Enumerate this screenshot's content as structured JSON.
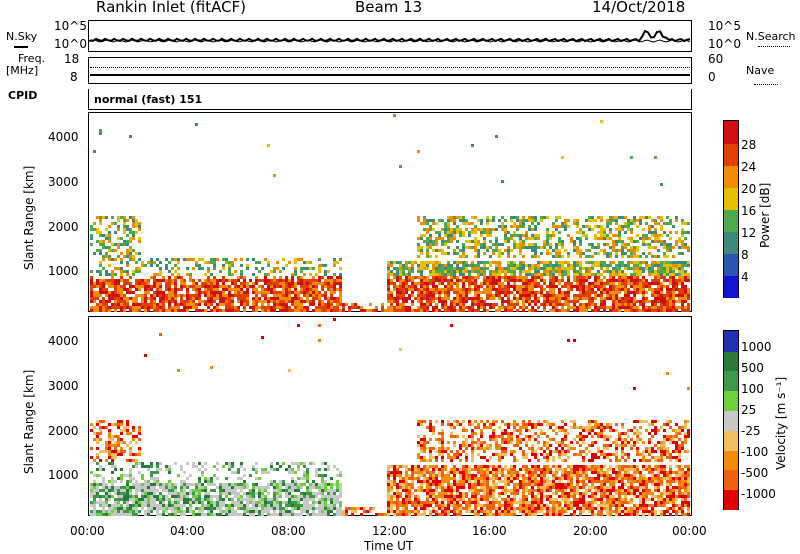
{
  "header": {
    "title": "Rankin Inlet (fitACF)",
    "beam": "Beam 13",
    "date": "14/Oct/2018"
  },
  "top_panel": {
    "left_label": "N.Sky",
    "right_label": "N.Search",
    "left_ticks": [
      "10^5",
      "10^0"
    ],
    "right_ticks": [
      "10^5",
      "10^0"
    ]
  },
  "freq_panel": {
    "left_label": "Freq.",
    "left_unit": "[MHz]",
    "left_ticks": [
      "18",
      "8"
    ],
    "right_label": "Nave",
    "right_ticks": [
      "60",
      "0"
    ],
    "cpid_label": "CPID",
    "mode_text": "normal (fast) 151"
  },
  "chart_data": [
    {
      "type": "heatmap",
      "name": "power",
      "ylabel": "Slant Range [km]",
      "xlabel": "",
      "yticks": [
        "1000",
        "2000",
        "3000",
        "4000"
      ],
      "ylim": [
        180,
        4560
      ],
      "xlim": [
        0,
        24
      ],
      "colorbar_label": "Power [dB]",
      "colorbar_ticks": [
        "4",
        "8",
        "12",
        "16",
        "20",
        "24",
        "28"
      ],
      "colorbar_colors": [
        "#1414d0",
        "#2a55b0",
        "#3b8a7a",
        "#4caa4c",
        "#e6c000",
        "#f08c00",
        "#e04000",
        "#d01010"
      ]
    },
    {
      "type": "heatmap",
      "name": "velocity",
      "ylabel": "Slant Range [km]",
      "xlabel": "Time UT",
      "yticks": [
        "1000",
        "2000",
        "3000",
        "4000"
      ],
      "ylim": [
        180,
        4560
      ],
      "xlim": [
        0,
        24
      ],
      "xticks": [
        "00:00",
        "04:00",
        "08:00",
        "12:00",
        "16:00",
        "20:00",
        "00:00"
      ],
      "colorbar_label": "Velocity [m s⁻¹]",
      "colorbar_ticks": [
        "1000",
        "500",
        "100",
        "25",
        "-25",
        "-100",
        "-500",
        "-1000"
      ],
      "colorbar_colors": [
        "#2030b0",
        "#2a7a3a",
        "#3a9a4a",
        "#6fcf3a",
        "#c8c8c8",
        "#f0c060",
        "#f08c00",
        "#f06010",
        "#e00000"
      ]
    }
  ]
}
